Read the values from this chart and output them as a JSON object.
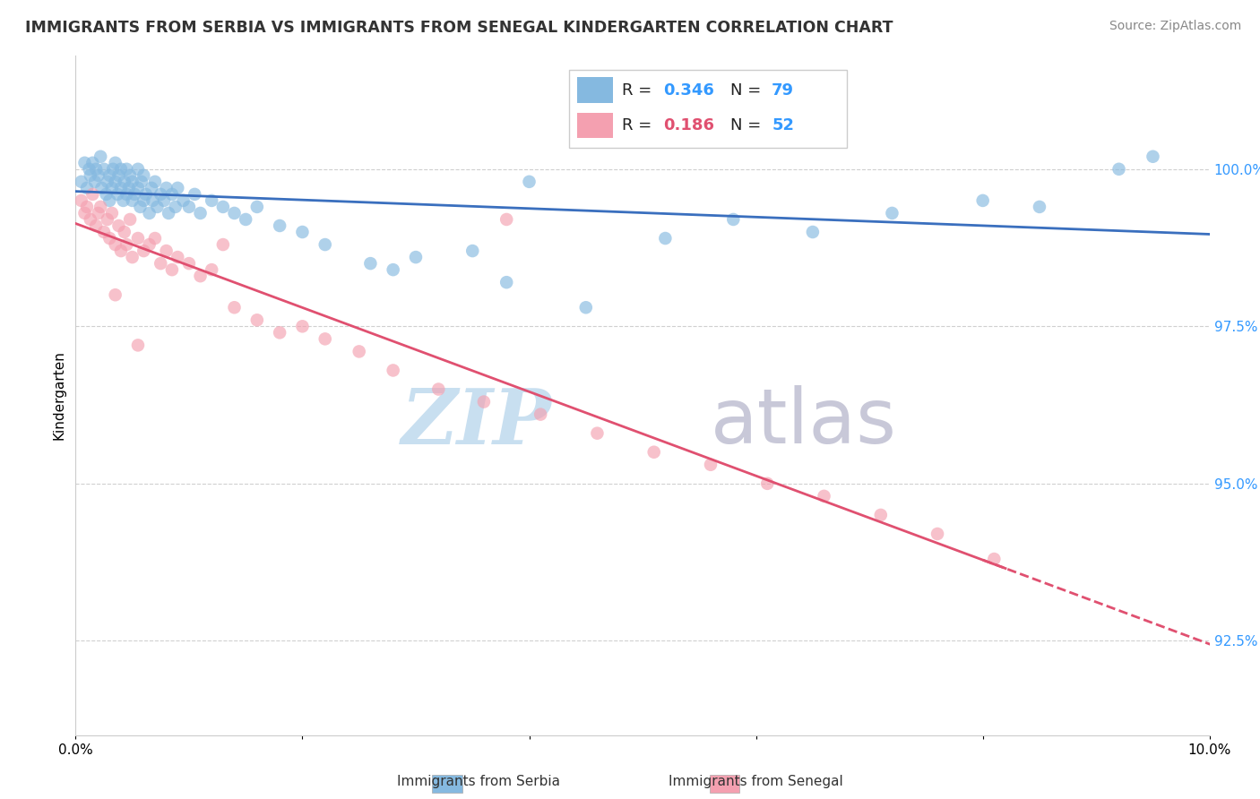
{
  "title": "IMMIGRANTS FROM SERBIA VS IMMIGRANTS FROM SENEGAL KINDERGARTEN CORRELATION CHART",
  "source": "Source: ZipAtlas.com",
  "xlabel_serbia": "Immigrants from Serbia",
  "xlabel_senegal": "Immigrants from Senegal",
  "ylabel": "Kindergarten",
  "xlim": [
    0.0,
    10.0
  ],
  "ylim": [
    91.0,
    101.8
  ],
  "yticks": [
    92.5,
    95.0,
    97.5,
    100.0
  ],
  "ytick_labels": [
    "92.5%",
    "95.0%",
    "97.5%",
    "100.0%"
  ],
  "xtick_labels": [
    "0.0%",
    "",
    "",
    "",
    "",
    "10.0%"
  ],
  "serbia_R": 0.346,
  "serbia_N": 79,
  "senegal_R": 0.186,
  "senegal_N": 52,
  "serbia_color": "#85b9e0",
  "senegal_color": "#f4a0b0",
  "serbia_line_color": "#3a6fbe",
  "senegal_line_color": "#e05070",
  "watermark_zip": "ZIP",
  "watermark_atlas": "atlas",
  "watermark_color_zip": "#c8dff0",
  "watermark_color_atlas": "#c8c8d8",
  "serbia_scatter_x": [
    0.05,
    0.08,
    0.1,
    0.12,
    0.13,
    0.15,
    0.17,
    0.18,
    0.2,
    0.22,
    0.23,
    0.25,
    0.27,
    0.28,
    0.3,
    0.3,
    0.32,
    0.33,
    0.35,
    0.35,
    0.37,
    0.38,
    0.4,
    0.4,
    0.42,
    0.43,
    0.45,
    0.45,
    0.47,
    0.48,
    0.5,
    0.5,
    0.52,
    0.55,
    0.55,
    0.57,
    0.58,
    0.6,
    0.6,
    0.62,
    0.65,
    0.67,
    0.68,
    0.7,
    0.72,
    0.75,
    0.78,
    0.8,
    0.82,
    0.85,
    0.88,
    0.9,
    0.95,
    1.0,
    1.05,
    1.1,
    1.2,
    1.3,
    1.4,
    1.5,
    1.6,
    1.8,
    2.0,
    2.2,
    2.6,
    3.0,
    3.5,
    4.0,
    4.5,
    5.2,
    5.8,
    6.5,
    7.2,
    8.0,
    8.5,
    9.2,
    9.5,
    2.8,
    3.8
  ],
  "serbia_scatter_y": [
    99.8,
    100.1,
    99.7,
    100.0,
    99.9,
    100.1,
    99.8,
    100.0,
    99.9,
    100.2,
    99.7,
    100.0,
    99.6,
    99.8,
    99.5,
    99.9,
    99.7,
    100.0,
    99.8,
    100.1,
    99.6,
    99.9,
    99.7,
    100.0,
    99.5,
    99.8,
    99.6,
    100.0,
    99.7,
    99.9,
    99.5,
    99.8,
    99.6,
    99.7,
    100.0,
    99.4,
    99.8,
    99.5,
    99.9,
    99.6,
    99.3,
    99.7,
    99.5,
    99.8,
    99.4,
    99.6,
    99.5,
    99.7,
    99.3,
    99.6,
    99.4,
    99.7,
    99.5,
    99.4,
    99.6,
    99.3,
    99.5,
    99.4,
    99.3,
    99.2,
    99.4,
    99.1,
    99.0,
    98.8,
    98.5,
    98.6,
    98.7,
    99.8,
    97.8,
    98.9,
    99.2,
    99.0,
    99.3,
    99.5,
    99.4,
    100.0,
    100.2,
    98.4,
    98.2
  ],
  "senegal_scatter_x": [
    0.05,
    0.08,
    0.1,
    0.13,
    0.15,
    0.18,
    0.2,
    0.22,
    0.25,
    0.28,
    0.3,
    0.32,
    0.35,
    0.38,
    0.4,
    0.43,
    0.45,
    0.48,
    0.5,
    0.55,
    0.6,
    0.65,
    0.7,
    0.75,
    0.8,
    0.85,
    0.9,
    1.0,
    1.1,
    1.2,
    1.4,
    1.6,
    1.8,
    2.0,
    2.2,
    2.5,
    2.8,
    3.2,
    3.6,
    4.1,
    4.6,
    5.1,
    5.6,
    6.1,
    6.6,
    7.1,
    7.6,
    8.1,
    0.35,
    0.55,
    1.3,
    3.8
  ],
  "senegal_scatter_y": [
    99.5,
    99.3,
    99.4,
    99.2,
    99.6,
    99.1,
    99.3,
    99.4,
    99.0,
    99.2,
    98.9,
    99.3,
    98.8,
    99.1,
    98.7,
    99.0,
    98.8,
    99.2,
    98.6,
    98.9,
    98.7,
    98.8,
    98.9,
    98.5,
    98.7,
    98.4,
    98.6,
    98.5,
    98.3,
    98.4,
    97.8,
    97.6,
    97.4,
    97.5,
    97.3,
    97.1,
    96.8,
    96.5,
    96.3,
    96.1,
    95.8,
    95.5,
    95.3,
    95.0,
    94.8,
    94.5,
    94.2,
    93.8,
    98.0,
    97.2,
    98.8,
    99.2
  ]
}
